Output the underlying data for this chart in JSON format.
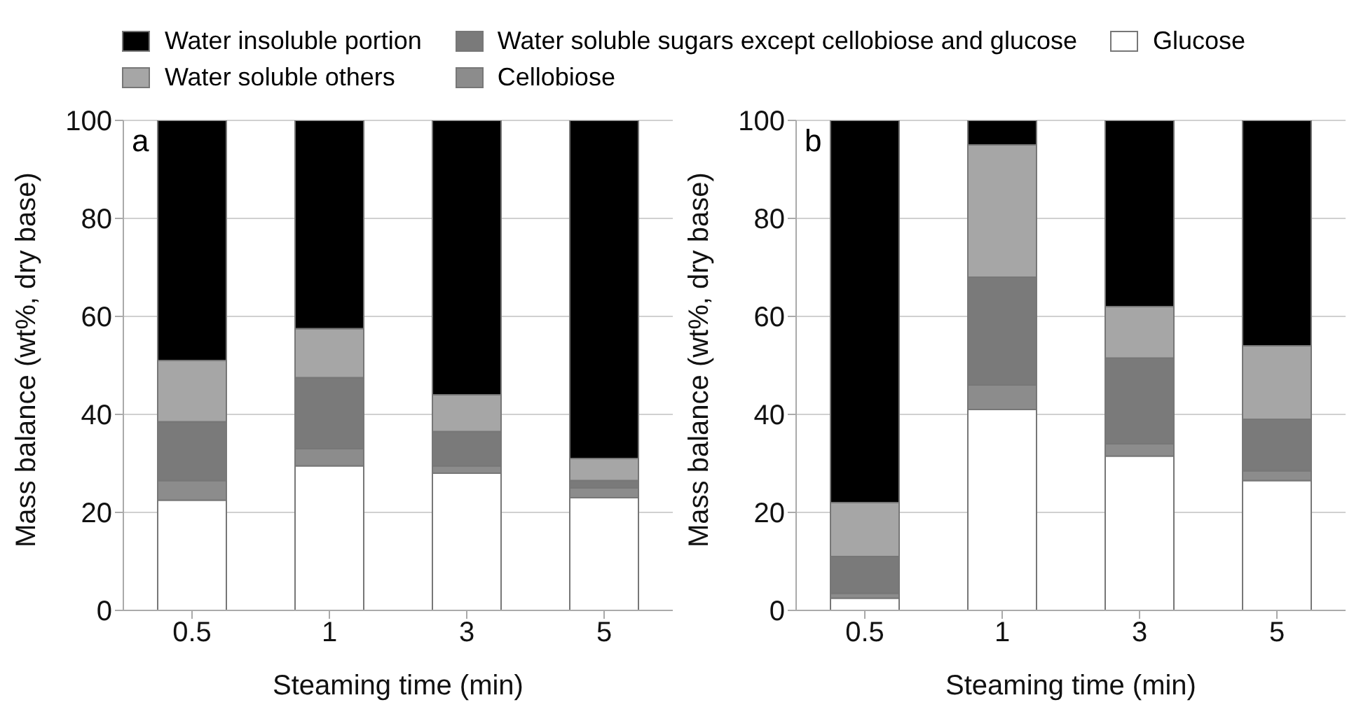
{
  "chart_data": [
    {
      "type": "bar",
      "stacked": true,
      "xlabel": "Steaming time (min)",
      "ylabel": "Mass balance (wt%, dry base)",
      "annotations": [
        "a"
      ],
      "categories": [
        "0.5",
        "1",
        "3",
        "5"
      ],
      "ylim": [
        0,
        100
      ],
      "yticks": [
        0,
        20,
        40,
        60,
        80,
        100
      ],
      "grid": "y",
      "legend": "top",
      "series": [
        {
          "name": "Glucose",
          "color": "#ffffff",
          "values": [
            22.5,
            29.5,
            28,
            23
          ]
        },
        {
          "name": "Cellobiose",
          "color": "#8c8c8c",
          "values": [
            4,
            3.5,
            1.5,
            2
          ]
        },
        {
          "name": "Water soluble sugars except cellobiose and glucose",
          "color": "#7a7a7a",
          "values": [
            12,
            14.5,
            7,
            1.5
          ]
        },
        {
          "name": "Water soluble others",
          "color": "#a6a6a6",
          "values": [
            12.5,
            10,
            7.5,
            4.5
          ]
        },
        {
          "name": "Water insoluble portion",
          "color": "#000000",
          "values": [
            49,
            42.5,
            56,
            69
          ]
        }
      ]
    },
    {
      "type": "bar",
      "stacked": true,
      "xlabel": "Steaming time (min)",
      "ylabel": "Mass balance (wt%, dry base)",
      "annotations": [
        "b"
      ],
      "categories": [
        "0.5",
        "1",
        "3",
        "5"
      ],
      "ylim": [
        0,
        100
      ],
      "yticks": [
        0,
        20,
        40,
        60,
        80,
        100
      ],
      "grid": "y",
      "series": [
        {
          "color": "#ffffff",
          "values": [
            2.5,
            41,
            31.5,
            26.5
          ]
        },
        {
          "color": "#8c8c8c",
          "values": [
            1,
            5,
            2.5,
            2
          ]
        },
        {
          "color": "#7a7a7a",
          "values": [
            7.5,
            22,
            17.5,
            10.5
          ]
        },
        {
          "color": "#a6a6a6",
          "values": [
            11,
            27,
            10.5,
            15
          ]
        },
        {
          "color": "#000000",
          "values": [
            78,
            5,
            38,
            46
          ]
        }
      ]
    }
  ]
}
